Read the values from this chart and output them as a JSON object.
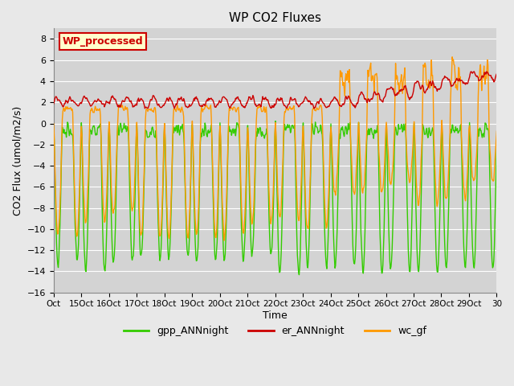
{
  "title": "WP CO2 Fluxes",
  "xlabel": "Time",
  "ylabel_display": "CO2 Flux (umol/m2/s)",
  "ylim": [
    -16,
    9
  ],
  "yticks": [
    -16,
    -14,
    -12,
    -10,
    -8,
    -6,
    -4,
    -2,
    0,
    2,
    4,
    6,
    8
  ],
  "background_color": "#e8e8e8",
  "plot_bg_color": "#d3d3d3",
  "legend_label": "WP_processed",
  "legend_box_color": "#ffffcc",
  "legend_border_color": "#cc0000",
  "colors": {
    "gpp": "#33cc00",
    "er": "#cc0000",
    "wc": "#ff9900"
  },
  "line_width": 1.0,
  "num_days": 16,
  "xtick_labels": [
    "Oct",
    "15Oct",
    "16Oct",
    "17Oct",
    "18Oct",
    "19Oct",
    "20Oct",
    "21Oct",
    "22Oct",
    "23Oct",
    "24Oct",
    "25Oct",
    "26Oct",
    "27Oct",
    "28Oct",
    "29Oct",
    "30"
  ],
  "seed": 42
}
